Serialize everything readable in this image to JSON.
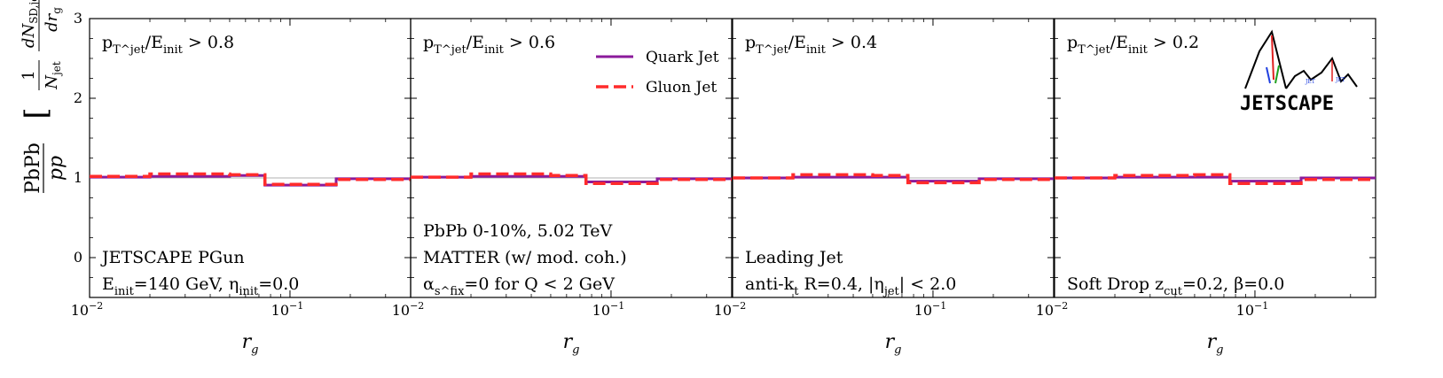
{
  "chart_data": {
    "type": "line",
    "step": true,
    "ylabel": "PbPb/pp [ (1/N_jet) dN_SD,jet/dr_g ]",
    "ylim": [
      -0.5,
      3
    ],
    "y_ticks": [
      0,
      1,
      2,
      3
    ],
    "y_tick_labels": [
      "0",
      "1",
      "2",
      "3"
    ],
    "xscale": "log",
    "xlim": [
      0.01,
      0.4
    ],
    "x_tick_labels": [
      "10",
      "10"
    ],
    "x_tick_exponents": [
      "−2",
      "−1"
    ],
    "reference_line": 1.0,
    "colors": {
      "quark": "#8b1a9b",
      "gluon": "#ff2b2b",
      "reference": "#b0b0b0"
    },
    "legend": {
      "location": "top-right of panel 2",
      "entries": [
        "Quark Jet",
        "Gluon Jet"
      ]
    },
    "panels": [
      {
        "title": "p_T^jet/E_init > 0.8",
        "xlabel": "r_g",
        "annotations": [
          "JETSCAPE PGun",
          "E_init=140 GeV, η_init=0.0"
        ],
        "bin_edges": [
          0.01,
          0.02,
          0.05,
          0.075,
          0.17,
          0.4
        ],
        "series": [
          {
            "name": "Quark Jet",
            "values": [
              1.01,
              1.02,
              1.03,
              0.91,
              0.99
            ]
          },
          {
            "name": "Gluon Jet",
            "values": [
              1.02,
              1.05,
              1.04,
              0.92,
              0.98
            ]
          }
        ]
      },
      {
        "title": "p_T^jet/E_init > 0.6",
        "xlabel": "r_g",
        "annotations": [
          "PbPb 0-10%, 5.02 TeV",
          "MATTER (w/ mod. coh.)",
          "α_s^fix=0 for Q < 2 GeV"
        ],
        "bin_edges": [
          0.01,
          0.02,
          0.05,
          0.075,
          0.17,
          0.4
        ],
        "series": [
          {
            "name": "Quark Jet",
            "values": [
              1.01,
              1.02,
              1.02,
              0.95,
              0.99
            ]
          },
          {
            "name": "Gluon Jet",
            "values": [
              1.01,
              1.05,
              1.03,
              0.93,
              0.98
            ]
          }
        ]
      },
      {
        "title": "p_T^jet/E_init > 0.4",
        "xlabel": "r_g",
        "annotations": [
          "Leading Jet",
          "anti-k_t R=0.4, |η_jet| < 2.0"
        ],
        "bin_edges": [
          0.01,
          0.02,
          0.05,
          0.075,
          0.17,
          0.4
        ],
        "series": [
          {
            "name": "Quark Jet",
            "values": [
              1.0,
              1.01,
              1.01,
              0.96,
              0.99
            ]
          },
          {
            "name": "Gluon Jet",
            "values": [
              1.0,
              1.04,
              1.03,
              0.94,
              0.98
            ]
          }
        ]
      },
      {
        "title": "p_T^jet/E_init > 0.2",
        "xlabel": "r_g",
        "annotations": [
          "Soft Drop z_cut=0.2, β=0.0"
        ],
        "bin_edges": [
          0.01,
          0.02,
          0.05,
          0.075,
          0.17,
          0.4
        ],
        "series": [
          {
            "name": "Quark Jet",
            "values": [
              1.0,
              1.01,
              1.01,
              0.96,
              1.0
            ]
          },
          {
            "name": "Gluon Jet",
            "values": [
              1.0,
              1.03,
              1.04,
              0.93,
              0.98
            ]
          }
        ]
      }
    ],
    "logo": "JETSCAPE"
  }
}
